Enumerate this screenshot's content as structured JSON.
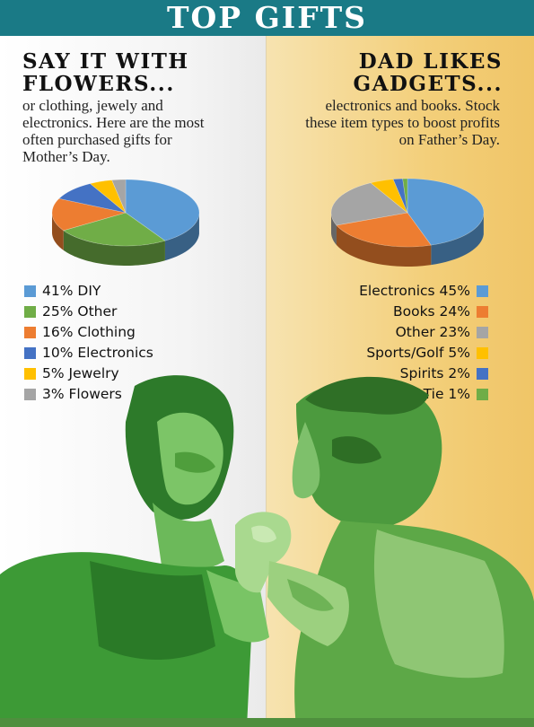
{
  "header": {
    "title": "TOP GIFTS"
  },
  "mothers_day": {
    "heading": "SAY IT WITH FLOWERS...",
    "blurb": "or clothing, jewely and electronics. Here are the most often purchased gifts for Mother’s Day."
  },
  "fathers_day": {
    "heading": "DAD LIKES GADGETS...",
    "blurb": "electronics and books. Stock these item types to boost profits on Father’s Day."
  },
  "colors": {
    "blue": "#5b9bd5",
    "green": "#70ad47",
    "orange": "#ed7d31",
    "dark_blue": "#4472c4",
    "yellow": "#ffc000",
    "gray": "#a5a5a5",
    "header": "#1a7a86"
  },
  "chart_data": [
    {
      "type": "pie",
      "title": "",
      "legend_position": "below",
      "slices": [
        {
          "label": "DIY",
          "value": 41,
          "legend": "41% DIY",
          "color": "#5b9bd5"
        },
        {
          "label": "Other",
          "value": 25,
          "legend": "25% Other",
          "color": "#70ad47"
        },
        {
          "label": "Clothing",
          "value": 16,
          "legend": "16% Clothing",
          "color": "#ed7d31"
        },
        {
          "label": "Electronics",
          "value": 10,
          "legend": "10% Electronics",
          "color": "#4472c4"
        },
        {
          "label": "Jewelry",
          "value": 5,
          "legend": "5% Jewelry",
          "color": "#ffc000"
        },
        {
          "label": "Flowers",
          "value": 3,
          "legend": "3% Flowers",
          "color": "#a5a5a5"
        }
      ]
    },
    {
      "type": "pie",
      "title": "",
      "legend_position": "below",
      "slices": [
        {
          "label": "Electronics",
          "value": 45,
          "legend": "Electronics 45%",
          "color": "#5b9bd5"
        },
        {
          "label": "Books",
          "value": 24,
          "legend": "Books 24%",
          "color": "#ed7d31"
        },
        {
          "label": "Other",
          "value": 23,
          "legend": "Other 23%",
          "color": "#a5a5a5"
        },
        {
          "label": "Sports/Golf",
          "value": 5,
          "legend": "Sports/Golf 5%",
          "color": "#ffc000"
        },
        {
          "label": "Spirits",
          "value": 2,
          "legend": "Spirits 2%",
          "color": "#4472c4"
        },
        {
          "label": "Tie",
          "value": 1,
          "legend": "Tie 1%",
          "color": "#70ad47"
        }
      ]
    }
  ]
}
